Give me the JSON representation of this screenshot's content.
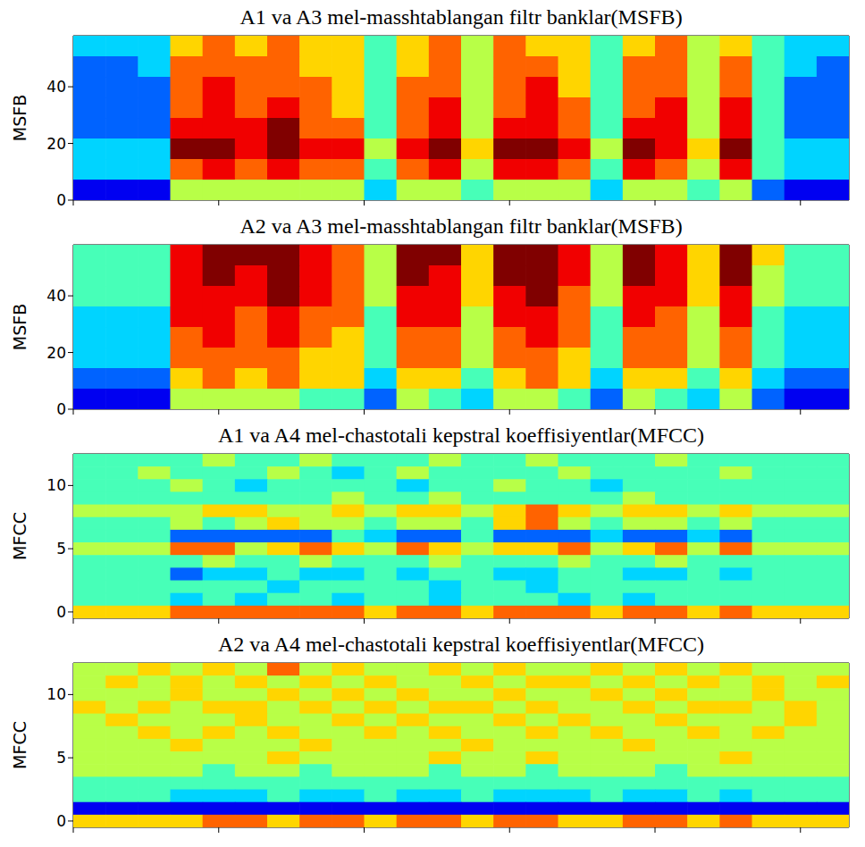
{
  "chart_data": [
    {
      "type": "heatmap",
      "title": "A1 va A3 mel-masshtablangan filtr banklar(MSFB)",
      "y_label": "MSFB",
      "xlim": [
        0,
        24
      ],
      "xticks": [
        0,
        4.5,
        9,
        13.5,
        18,
        22.5
      ],
      "ylim": [
        0,
        58
      ],
      "yticks": [
        0,
        20,
        40
      ],
      "tick_labels": "y",
      "zlim": [
        0,
        9
      ],
      "cells": [
        [
          3,
          3,
          3,
          6,
          7,
          6,
          7,
          6,
          6,
          4,
          6,
          7,
          5,
          7,
          6,
          6,
          4,
          6,
          7,
          5,
          6,
          4,
          3,
          3
        ],
        [
          2,
          2,
          3,
          7,
          7,
          7,
          7,
          6,
          6,
          4,
          6,
          7,
          5,
          7,
          7,
          6,
          4,
          7,
          7,
          5,
          7,
          4,
          3,
          2
        ],
        [
          2,
          2,
          2,
          7,
          8,
          7,
          7,
          7,
          6,
          4,
          7,
          7,
          5,
          7,
          8,
          6,
          4,
          7,
          7,
          5,
          7,
          4,
          2,
          2
        ],
        [
          2,
          2,
          2,
          7,
          8,
          7,
          8,
          7,
          6,
          4,
          7,
          8,
          5,
          7,
          8,
          7,
          4,
          7,
          8,
          5,
          8,
          4,
          2,
          2
        ],
        [
          2,
          2,
          2,
          8,
          8,
          8,
          9,
          7,
          7,
          4,
          7,
          8,
          5,
          8,
          8,
          7,
          4,
          8,
          8,
          5,
          8,
          4,
          2,
          2
        ],
        [
          3,
          3,
          3,
          9,
          9,
          8,
          9,
          8,
          8,
          5,
          8,
          9,
          6,
          9,
          9,
          8,
          5,
          9,
          8,
          6,
          9,
          4,
          3,
          3
        ],
        [
          3,
          3,
          3,
          7,
          8,
          7,
          8,
          7,
          7,
          4,
          7,
          8,
          5,
          8,
          8,
          7,
          4,
          8,
          7,
          5,
          8,
          4,
          3,
          3
        ],
        [
          1,
          1,
          1,
          5,
          5,
          5,
          5,
          5,
          5,
          3,
          5,
          5,
          4,
          5,
          5,
          5,
          3,
          5,
          5,
          4,
          5,
          2,
          1,
          1
        ]
      ]
    },
    {
      "type": "heatmap",
      "title": "A2 va A3 mel-masshtablangan filtr banklar(MSFB)",
      "y_label": "MSFB",
      "xlim": [
        0,
        24
      ],
      "xticks": [
        0,
        4.5,
        9,
        13.5,
        18,
        22.5
      ],
      "ylim": [
        0,
        58
      ],
      "yticks": [
        0,
        20,
        40
      ],
      "tick_labels": "y",
      "zlim": [
        0,
        9
      ],
      "cells": [
        [
          4,
          4,
          4,
          8,
          9,
          9,
          9,
          8,
          7,
          5,
          9,
          9,
          6,
          9,
          9,
          8,
          5,
          9,
          8,
          6,
          9,
          6,
          4,
          4
        ],
        [
          4,
          4,
          4,
          8,
          9,
          8,
          9,
          8,
          7,
          5,
          9,
          8,
          6,
          9,
          9,
          8,
          5,
          9,
          8,
          6,
          9,
          5,
          4,
          4
        ],
        [
          4,
          4,
          4,
          8,
          8,
          8,
          9,
          8,
          7,
          5,
          8,
          8,
          6,
          8,
          9,
          7,
          5,
          8,
          8,
          6,
          8,
          5,
          4,
          4
        ],
        [
          3,
          3,
          3,
          8,
          8,
          7,
          8,
          7,
          7,
          4,
          8,
          8,
          5,
          8,
          8,
          7,
          4,
          8,
          7,
          5,
          8,
          4,
          3,
          3
        ],
        [
          3,
          3,
          3,
          7,
          8,
          7,
          8,
          7,
          6,
          4,
          7,
          7,
          5,
          7,
          8,
          7,
          4,
          7,
          7,
          5,
          7,
          4,
          3,
          3
        ],
        [
          3,
          3,
          3,
          7,
          7,
          7,
          7,
          6,
          6,
          4,
          7,
          7,
          5,
          7,
          7,
          6,
          4,
          7,
          7,
          5,
          7,
          4,
          3,
          3
        ],
        [
          2,
          2,
          2,
          6,
          7,
          6,
          7,
          6,
          6,
          3,
          6,
          6,
          4,
          6,
          7,
          6,
          3,
          6,
          6,
          4,
          6,
          3,
          2,
          2
        ],
        [
          1,
          1,
          1,
          5,
          5,
          5,
          5,
          4,
          4,
          2,
          5,
          4,
          3,
          5,
          5,
          4,
          2,
          5,
          4,
          3,
          5,
          2,
          1,
          1
        ]
      ]
    },
    {
      "type": "heatmap",
      "title": "A1 va A4 mel-chastotali kepstral koeffisiyentlar(MFCC)",
      "y_label": "MFCC",
      "xlim": [
        0,
        24
      ],
      "xticks": [
        0,
        4.5,
        9,
        13.5,
        18,
        22.5
      ],
      "ylim": [
        -0.5,
        12.5
      ],
      "yticks": [
        0,
        5,
        10
      ],
      "tick_labels": "y",
      "zlim": [
        0,
        9
      ],
      "cells": [
        [
          4,
          4,
          4,
          4,
          5,
          4,
          4,
          5,
          4,
          4,
          4,
          5,
          4,
          4,
          5,
          4,
          4,
          4,
          5,
          4,
          4,
          4,
          4,
          4
        ],
        [
          4,
          4,
          5,
          4,
          4,
          4,
          5,
          4,
          3,
          4,
          5,
          4,
          4,
          4,
          4,
          5,
          4,
          4,
          4,
          4,
          5,
          4,
          4,
          4
        ],
        [
          4,
          4,
          4,
          5,
          4,
          3,
          4,
          4,
          4,
          4,
          3,
          4,
          4,
          5,
          4,
          4,
          3,
          4,
          4,
          4,
          4,
          4,
          4,
          4
        ],
        [
          4,
          4,
          4,
          4,
          4,
          4,
          4,
          4,
          5,
          4,
          4,
          5,
          4,
          4,
          4,
          4,
          4,
          5,
          4,
          4,
          4,
          4,
          4,
          4
        ],
        [
          5,
          5,
          5,
          5,
          6,
          6,
          5,
          5,
          6,
          5,
          6,
          6,
          5,
          6,
          7,
          6,
          5,
          6,
          6,
          5,
          6,
          5,
          5,
          5
        ],
        [
          4,
          4,
          4,
          5,
          4,
          5,
          6,
          5,
          5,
          4,
          5,
          5,
          4,
          6,
          7,
          5,
          4,
          5,
          5,
          4,
          5,
          4,
          4,
          4
        ],
        [
          4,
          4,
          4,
          2,
          2,
          2,
          2,
          2,
          4,
          3,
          2,
          2,
          4,
          2,
          2,
          2,
          3,
          2,
          2,
          3,
          2,
          4,
          4,
          4
        ],
        [
          5,
          5,
          5,
          7,
          7,
          5,
          6,
          7,
          6,
          5,
          7,
          6,
          5,
          6,
          6,
          7,
          5,
          6,
          7,
          5,
          7,
          5,
          5,
          5
        ],
        [
          4,
          4,
          4,
          4,
          5,
          4,
          4,
          5,
          4,
          4,
          4,
          5,
          4,
          4,
          4,
          5,
          4,
          4,
          5,
          4,
          4,
          4,
          4,
          4
        ],
        [
          4,
          4,
          4,
          2,
          3,
          3,
          4,
          3,
          3,
          4,
          3,
          4,
          4,
          3,
          3,
          4,
          4,
          3,
          3,
          4,
          3,
          4,
          4,
          4
        ],
        [
          4,
          4,
          4,
          4,
          4,
          4,
          3,
          4,
          4,
          4,
          4,
          3,
          4,
          4,
          3,
          4,
          4,
          4,
          4,
          4,
          4,
          4,
          4,
          4
        ],
        [
          4,
          4,
          4,
          3,
          4,
          3,
          4,
          4,
          3,
          4,
          4,
          3,
          4,
          4,
          4,
          3,
          4,
          3,
          4,
          4,
          4,
          4,
          4,
          4
        ],
        [
          6,
          6,
          6,
          7,
          7,
          7,
          7,
          7,
          7,
          6,
          7,
          7,
          6,
          7,
          7,
          7,
          6,
          7,
          7,
          6,
          7,
          6,
          6,
          6
        ]
      ]
    },
    {
      "type": "heatmap",
      "title": "A2 va A4 mel-chastotali kepstral koeffisiyentlar(MFCC)",
      "y_label": "MFCC",
      "xlim": [
        0,
        24
      ],
      "xticks": [
        0,
        4.5,
        9,
        13.5,
        18,
        22.5
      ],
      "ylim": [
        -0.5,
        12.5
      ],
      "yticks": [
        0,
        5,
        10
      ],
      "tick_labels": "y",
      "zlim": [
        0,
        9
      ],
      "cells": [
        [
          5,
          5,
          6,
          5,
          6,
          5,
          7,
          5,
          6,
          5,
          5,
          6,
          5,
          6,
          5,
          5,
          6,
          5,
          6,
          5,
          6,
          5,
          5,
          5
        ],
        [
          5,
          6,
          5,
          6,
          5,
          6,
          5,
          6,
          5,
          6,
          5,
          5,
          6,
          5,
          6,
          6,
          5,
          6,
          5,
          6,
          5,
          6,
          5,
          6
        ],
        [
          5,
          5,
          5,
          6,
          5,
          5,
          6,
          5,
          6,
          5,
          6,
          5,
          5,
          6,
          5,
          5,
          6,
          5,
          6,
          5,
          5,
          6,
          5,
          5
        ],
        [
          6,
          5,
          6,
          5,
          6,
          6,
          5,
          6,
          5,
          6,
          5,
          6,
          6,
          5,
          6,
          5,
          5,
          6,
          5,
          6,
          6,
          5,
          6,
          5
        ],
        [
          5,
          6,
          5,
          5,
          5,
          6,
          5,
          5,
          6,
          5,
          6,
          5,
          5,
          6,
          5,
          6,
          5,
          5,
          6,
          5,
          5,
          5,
          6,
          5
        ],
        [
          5,
          5,
          6,
          5,
          6,
          5,
          6,
          5,
          5,
          6,
          5,
          6,
          5,
          5,
          6,
          5,
          6,
          5,
          5,
          6,
          5,
          6,
          5,
          5
        ],
        [
          5,
          5,
          5,
          6,
          5,
          5,
          5,
          6,
          5,
          5,
          5,
          5,
          6,
          5,
          5,
          5,
          5,
          6,
          5,
          5,
          5,
          5,
          5,
          5
        ],
        [
          5,
          5,
          5,
          5,
          5,
          5,
          6,
          5,
          5,
          5,
          5,
          6,
          5,
          5,
          6,
          5,
          5,
          5,
          5,
          5,
          6,
          5,
          5,
          5
        ],
        [
          5,
          5,
          5,
          5,
          4,
          5,
          5,
          4,
          5,
          5,
          5,
          4,
          5,
          5,
          4,
          5,
          5,
          5,
          4,
          5,
          5,
          5,
          5,
          5
        ],
        [
          4,
          4,
          4,
          4,
          4,
          4,
          4,
          4,
          4,
          4,
          4,
          4,
          4,
          4,
          4,
          4,
          4,
          4,
          4,
          4,
          4,
          4,
          4,
          4
        ],
        [
          4,
          4,
          4,
          3,
          3,
          3,
          4,
          3,
          3,
          4,
          3,
          3,
          4,
          3,
          3,
          3,
          4,
          3,
          3,
          4,
          3,
          4,
          4,
          4
        ],
        [
          1,
          1,
          1,
          1,
          1,
          1,
          1,
          1,
          1,
          1,
          1,
          1,
          1,
          1,
          1,
          1,
          1,
          1,
          1,
          1,
          1,
          1,
          1,
          1
        ],
        [
          6,
          6,
          6,
          6,
          7,
          7,
          6,
          7,
          7,
          6,
          7,
          7,
          6,
          7,
          7,
          6,
          6,
          7,
          7,
          6,
          7,
          6,
          6,
          6
        ]
      ]
    }
  ]
}
